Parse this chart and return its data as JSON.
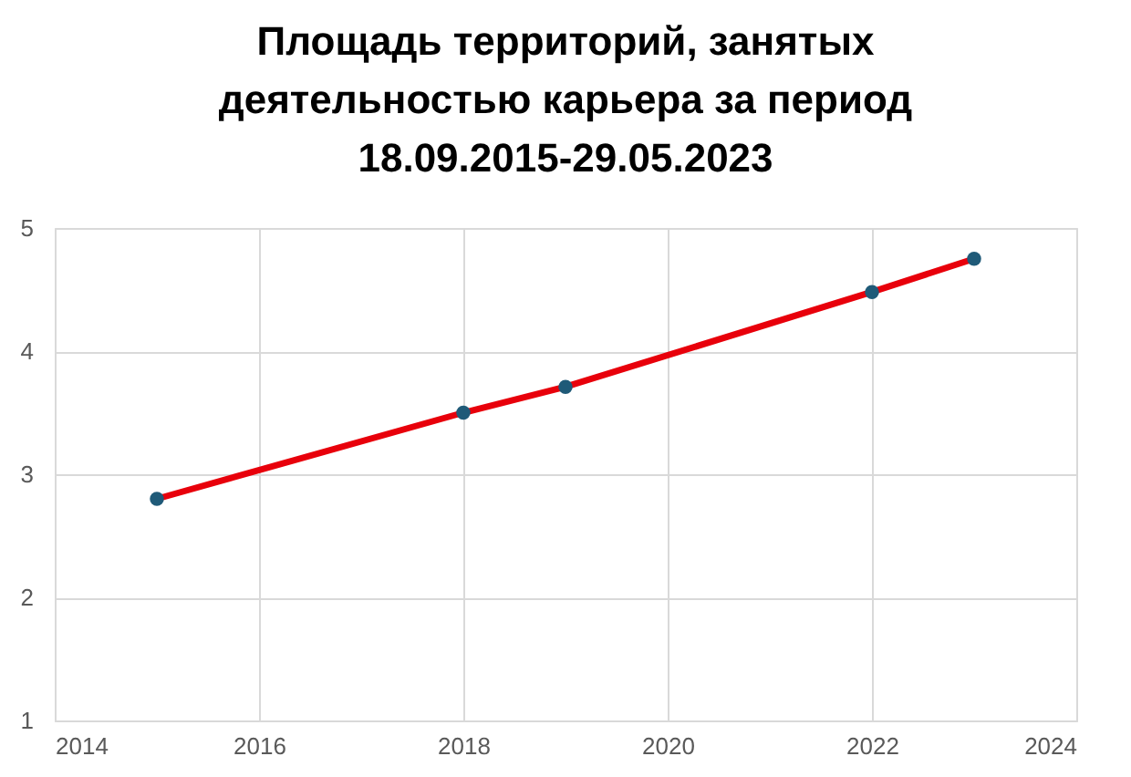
{
  "chart_data": {
    "type": "line",
    "title": "Площадь территорий, занятых\nдеятельностью карьера за период\n18.09.2015-29.05.2023",
    "x": [
      2015,
      2018,
      2019,
      2022,
      2023
    ],
    "series": [
      {
        "color": "#e8000b",
        "colors": [
          "#1f5a78",
          "#1f5a78",
          "#1f5a78",
          "#1f5a78",
          "#1f5a78"
        ],
        "values": [
          2.8,
          3.5,
          3.71,
          4.48,
          4.75
        ]
      }
    ],
    "xlim": [
      2014,
      2024
    ],
    "xticks": [
      2014,
      2016,
      2018,
      2020,
      2022,
      2024
    ],
    "ylim": [
      1,
      5
    ],
    "yticks": [
      1,
      2,
      3,
      4,
      5
    ],
    "grid": true,
    "marker": "circle",
    "line_style": "solid"
  }
}
